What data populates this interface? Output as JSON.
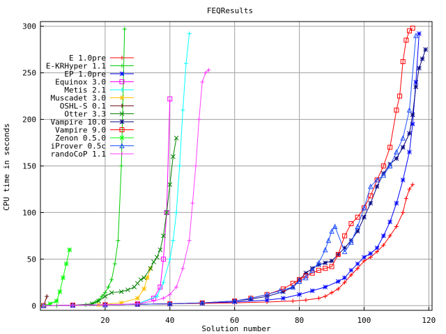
{
  "chart_data": {
    "type": "line",
    "title": "FEQResults",
    "xlabel": "Solution number",
    "ylabel": "CPU time in seconds",
    "xlim": [
      0,
      121
    ],
    "ylim": [
      -5,
      305
    ],
    "xticks": [
      20,
      40,
      60,
      80,
      100,
      120
    ],
    "yticks": [
      0,
      50,
      100,
      150,
      200,
      250,
      300
    ],
    "xtick_labels": [
      "20",
      "40",
      "60",
      "80",
      "100",
      "120"
    ],
    "ytick_labels": [
      "0",
      "50",
      "100",
      "150",
      "200",
      "250",
      "300"
    ],
    "grid": true,
    "legend_position": "top-left",
    "series": [
      {
        "name": "E 1.0pre",
        "color": "#ff0000",
        "marker": "plus",
        "x": [
          1,
          10,
          20,
          30,
          40,
          50,
          60,
          70,
          78,
          82,
          86,
          88,
          90,
          92,
          94,
          96,
          98,
          100,
          102,
          104,
          106,
          108,
          110,
          112,
          113,
          114,
          115
        ],
        "y": [
          0,
          0.5,
          1,
          1.5,
          2,
          2.5,
          3,
          4,
          5,
          6,
          8,
          10,
          14,
          18,
          25,
          33,
          40,
          48,
          52,
          58,
          65,
          75,
          85,
          100,
          115,
          125,
          130
        ]
      },
      {
        "name": "E-KRHyper 1.1",
        "color": "#00cc00",
        "marker": "plus",
        "x": [
          1,
          5,
          10,
          14,
          16,
          17,
          18,
          19,
          20,
          21,
          22,
          23,
          24,
          25,
          26
        ],
        "y": [
          0,
          0,
          0.5,
          1,
          2,
          4,
          6,
          10,
          14,
          20,
          28,
          45,
          70,
          150,
          297
        ]
      },
      {
        "name": "EP 1.0pre",
        "color": "#0000ff",
        "marker": "star",
        "x": [
          1,
          10,
          20,
          30,
          40,
          50,
          60,
          70,
          75,
          80,
          84,
          88,
          92,
          94,
          96,
          98,
          100,
          102,
          104,
          106,
          108,
          110,
          112,
          114,
          115,
          116,
          117
        ],
        "y": [
          0,
          0.5,
          1,
          1.5,
          2,
          3,
          4,
          6,
          8,
          12,
          16,
          20,
          26,
          30,
          38,
          45,
          52,
          56,
          62,
          75,
          90,
          110,
          135,
          165,
          195,
          240,
          292
        ]
      },
      {
        "name": "Equinox 3.0",
        "color": "#ff00ff",
        "marker": "square",
        "x": [
          1,
          10,
          20,
          30,
          35,
          37,
          38,
          39,
          40
        ],
        "y": [
          0,
          0.5,
          1,
          2,
          8,
          20,
          50,
          100,
          222
        ]
      },
      {
        "name": "Metis 2.1",
        "color": "#00ffff",
        "marker": "plus",
        "x": [
          1,
          10,
          20,
          30,
          36,
          38,
          40,
          41,
          42,
          43,
          44,
          45,
          46
        ],
        "y": [
          0,
          0.5,
          1,
          2,
          10,
          25,
          50,
          70,
          100,
          150,
          210,
          260,
          292
        ]
      },
      {
        "name": "Muscadet 3.0",
        "color": "#ffc000",
        "marker": "star",
        "x": [
          1,
          10,
          18,
          25,
          30,
          32,
          33,
          34
        ],
        "y": [
          0,
          0.5,
          1,
          3,
          8,
          18,
          30,
          40
        ]
      },
      {
        "name": "OSHL-S 0.1",
        "color": "#600000",
        "marker": "plus",
        "x": [
          1,
          2
        ],
        "y": [
          0,
          10
        ]
      },
      {
        "name": "Otter 3.3",
        "color": "#008000",
        "marker": "cross",
        "x": [
          1,
          10,
          16,
          18,
          20,
          22,
          25,
          27,
          29,
          30,
          31,
          32,
          34,
          35,
          36,
          37,
          38,
          39,
          40,
          41,
          42
        ],
        "y": [
          0,
          0.5,
          2,
          5,
          10,
          14,
          15,
          17,
          20,
          24,
          28,
          30,
          40,
          47,
          52,
          60,
          75,
          100,
          130,
          160,
          180
        ]
      },
      {
        "name": "Vampire 10.0",
        "color": "#000080",
        "marker": "star",
        "x": [
          1,
          10,
          20,
          30,
          40,
          50,
          60,
          65,
          70,
          75,
          78,
          80,
          82,
          84,
          86,
          88,
          90,
          92,
          94,
          96,
          98,
          100,
          102,
          104,
          106,
          108,
          110,
          112,
          114,
          115,
          116,
          117,
          118,
          119
        ],
        "y": [
          0,
          0.5,
          1,
          1.5,
          2,
          3,
          5,
          7,
          10,
          15,
          20,
          28,
          35,
          40,
          44,
          46,
          48,
          55,
          62,
          70,
          80,
          95,
          110,
          128,
          142,
          152,
          158,
          170,
          185,
          205,
          235,
          255,
          265,
          275
        ]
      },
      {
        "name": "Vampire 9.0",
        "color": "#ff0000",
        "marker": "square",
        "x": [
          1,
          10,
          20,
          30,
          40,
          50,
          60,
          65,
          70,
          75,
          78,
          80,
          82,
          84,
          86,
          88,
          90,
          92,
          94,
          96,
          98,
          100,
          102,
          104,
          106,
          108,
          110,
          111,
          112,
          113,
          114,
          115
        ],
        "y": [
          0,
          0.5,
          1,
          1.5,
          2,
          3,
          5,
          8,
          12,
          18,
          24,
          28,
          32,
          35,
          38,
          40,
          42,
          55,
          75,
          88,
          95,
          105,
          118,
          135,
          150,
          170,
          210,
          225,
          262,
          285,
          295,
          298
        ]
      },
      {
        "name": "Zenon 0.5.0",
        "color": "#00ff00",
        "marker": "star",
        "x": [
          1,
          3,
          5,
          6,
          7,
          8,
          9
        ],
        "y": [
          0,
          2,
          5,
          15,
          30,
          45,
          60
        ]
      },
      {
        "name": "iProver 0.5c",
        "color": "#2050ff",
        "marker": "triangle",
        "x": [
          1,
          10,
          20,
          30,
          40,
          50,
          60,
          65,
          70,
          74,
          78,
          80,
          82,
          84,
          86,
          88,
          89,
          90,
          91,
          94,
          96,
          98,
          100,
          102,
          104,
          106,
          108,
          110,
          112,
          114,
          116
        ],
        "y": [
          0,
          0.5,
          1,
          1.5,
          2,
          3,
          5,
          8,
          12,
          16,
          20,
          26,
          30,
          38,
          46,
          60,
          70,
          80,
          85,
          58,
          68,
          85,
          105,
          128,
          135,
          140,
          150,
          165,
          180,
          210,
          290
        ]
      },
      {
        "name": "randoCoP 1.1",
        "color": "#ff40ff",
        "marker": "plus",
        "x": [
          1,
          10,
          20,
          30,
          35,
          38,
          40,
          42,
          44,
          46,
          47,
          48,
          49,
          50,
          51,
          52
        ],
        "y": [
          0,
          0.5,
          1,
          2,
          5,
          8,
          12,
          20,
          40,
          70,
          110,
          150,
          200,
          240,
          250,
          253
        ]
      }
    ]
  }
}
